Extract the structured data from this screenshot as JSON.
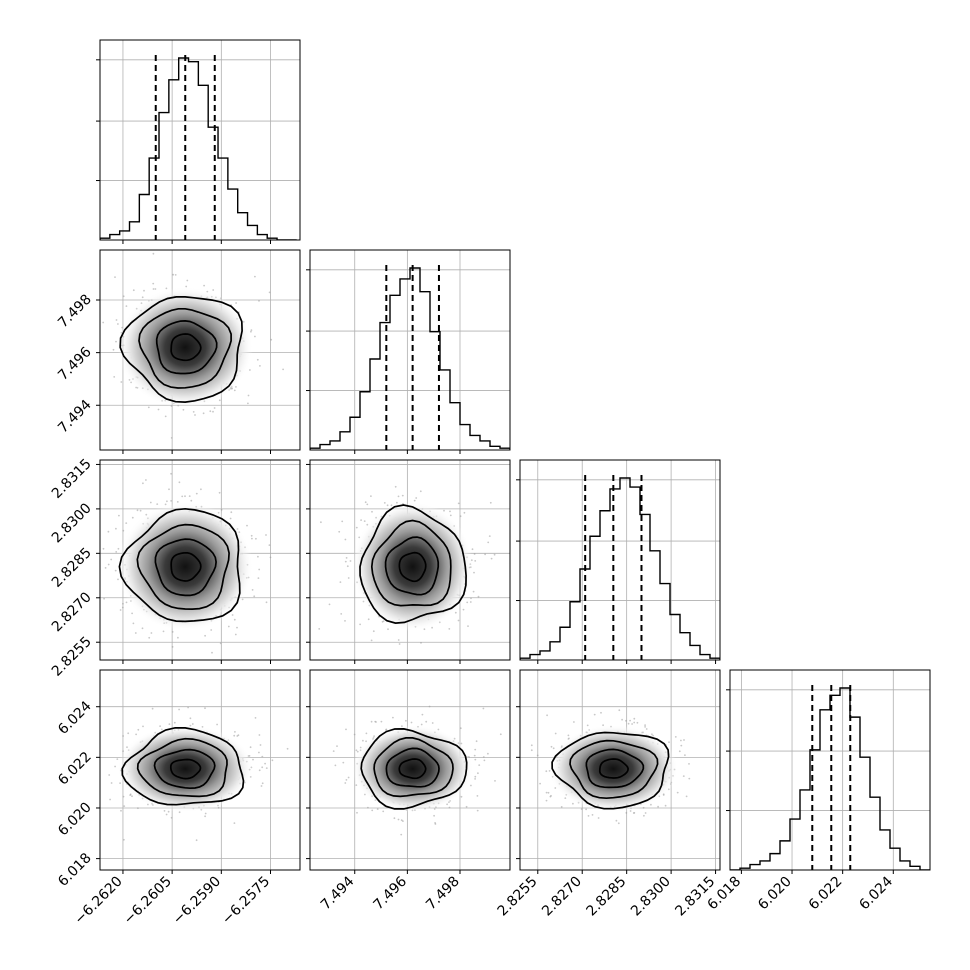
{
  "chart_data": {
    "type": "corner",
    "parameters": [
      {
        "median": -6.2601,
        "q16": -6.261,
        "q84": -6.2592,
        "sigma": 0.0009,
        "range": [
          -6.2627,
          -6.2566
        ],
        "ticks": [
          -6.262,
          -6.2605,
          -6.259,
          -6.2575
        ],
        "tick_labels": [
          "−6.2620",
          "−6.2605",
          "−6.2590",
          "−6.2575"
        ]
      },
      {
        "median": 7.4962,
        "q16": 7.4952,
        "q84": 7.4972,
        "sigma": 0.001,
        "range": [
          7.4923,
          7.4999
        ],
        "ticks": [
          7.494,
          7.496,
          7.498
        ],
        "tick_labels": [
          "7.494",
          "7.496",
          "7.498"
        ]
      },
      {
        "median": 2.82805,
        "q16": 2.8271,
        "q84": 2.829,
        "sigma": 0.00095,
        "range": [
          2.8249,
          2.83165
        ],
        "ticks": [
          2.8255,
          2.827,
          2.8285,
          2.83,
          2.8315
        ],
        "tick_labels": [
          "2.8255",
          "2.8270",
          "2.8285",
          "2.8300",
          "2.8315"
        ]
      },
      {
        "median": 6.02155,
        "q16": 6.0208,
        "q84": 6.0223,
        "sigma": 0.00075,
        "range": [
          6.01755,
          6.02545
        ],
        "ticks": [
          6.018,
          6.02,
          6.022,
          6.024
        ],
        "tick_labels": [
          "6.018",
          "6.020",
          "6.022",
          "6.024"
        ]
      }
    ],
    "histograms": [
      {
        "bin_edges_start": -6.2627,
        "bin_width": 0.0003,
        "counts": [
          1,
          3,
          5,
          10,
          25,
          45,
          70,
          88,
          100,
          98,
          85,
          62,
          45,
          28,
          15,
          8,
          3,
          1,
          0,
          0
        ]
      },
      {
        "bin_edges_start": 7.4923,
        "bin_width": 0.00038,
        "counts": [
          1,
          3,
          5,
          10,
          18,
          32,
          50,
          70,
          85,
          94,
          100,
          87,
          65,
          44,
          26,
          14,
          8,
          5,
          2,
          1
        ]
      },
      {
        "bin_edges_start": 2.8249,
        "bin_width": 0.0003375,
        "counts": [
          1,
          3,
          5,
          10,
          18,
          32,
          50,
          68,
          82,
          94,
          100,
          95,
          80,
          60,
          42,
          25,
          15,
          8,
          3,
          1
        ]
      },
      {
        "bin_edges_start": 6.01755,
        "bin_width": 0.000395,
        "counts": [
          0,
          1,
          3,
          5,
          9,
          16,
          28,
          44,
          66,
          88,
          96,
          100,
          84,
          62,
          40,
          22,
          12,
          5,
          2,
          0
        ]
      }
    ],
    "contour_levels_sigma": [
      0.5,
      1.0,
      1.5,
      2.0
    ],
    "grid": true
  }
}
